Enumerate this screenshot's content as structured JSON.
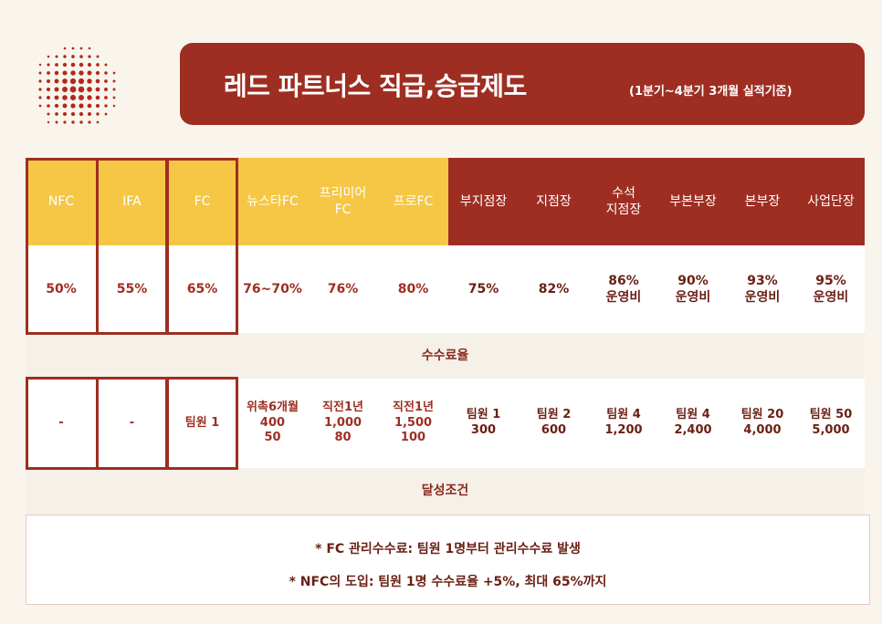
{
  "banner": {
    "title": "레드 파트너스 직급,승급제도",
    "subtitle": "(1분기~4분기 3개월 실적기준)"
  },
  "table": {
    "headers": [
      "NFC",
      "IFA",
      "FC",
      "뉴스타FC",
      "프리미어\nFC",
      "프로FC",
      "부지점장",
      "지점장",
      "수석\n지점장",
      "부본부장",
      "본부장",
      "사업단장"
    ],
    "rates": [
      "50%",
      "55%",
      "65%",
      "76~70%",
      "76%",
      "80%",
      "75%",
      "82%",
      "86%\n운영비",
      "90%\n운영비",
      "93%\n운영비",
      "95%\n운영비"
    ],
    "rate_label": "수수료율",
    "conditions": [
      "-",
      "-",
      "팀원 1",
      "위촉6개월\n400\n50",
      "직전1년\n1,000\n80",
      "직전1년\n1,500\n100",
      "팀원 1\n300",
      "팀원 2\n600",
      "팀원 4\n1,200",
      "팀원 4\n2,400",
      "팀원 20\n4,000",
      "팀원 50\n5,000"
    ],
    "condition_label": "달성조건"
  },
  "notes": [
    "* FC 관리수수료: 팀원 1명부터 관리수수료 발생",
    "* NFC의 도입: 팀원 1명 수수료율 +5%, 최대 65%까지"
  ],
  "colors": {
    "brand_red": "#9e2e22",
    "accent_yellow": "#f6c745",
    "background": "#faf5ec"
  }
}
